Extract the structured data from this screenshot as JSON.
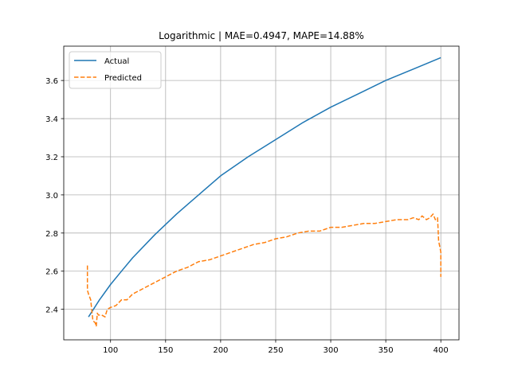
{
  "chart_data": {
    "type": "line",
    "title": "Logarithmic | MAE=0.4947, MAPE=14.88%",
    "xlabel": "",
    "ylabel": "",
    "xlim": [
      57.5,
      416.5
    ],
    "ylim": [
      2.24,
      3.78
    ],
    "x_ticks": [
      100,
      150,
      200,
      250,
      300,
      350,
      400
    ],
    "y_ticks": [
      2.4,
      2.6,
      2.8,
      3.0,
      3.2,
      3.4,
      3.6
    ],
    "y_tick_labels": [
      "2.4",
      "2.6",
      "2.8",
      "3.0",
      "3.2",
      "3.4",
      "3.6"
    ],
    "grid": true,
    "legend_position": "top-left",
    "series": [
      {
        "name": "Actual",
        "color": "#1f77b4",
        "dash": "solid",
        "points": [
          [
            80,
            2.36
          ],
          [
            90,
            2.45
          ],
          [
            100,
            2.53
          ],
          [
            110,
            2.6
          ],
          [
            120,
            2.67
          ],
          [
            140,
            2.79
          ],
          [
            160,
            2.9
          ],
          [
            180,
            3.0
          ],
          [
            200,
            3.1
          ],
          [
            225,
            3.2
          ],
          [
            250,
            3.29
          ],
          [
            275,
            3.38
          ],
          [
            300,
            3.46
          ],
          [
            325,
            3.53
          ],
          [
            350,
            3.6
          ],
          [
            375,
            3.66
          ],
          [
            400,
            3.72
          ]
        ]
      },
      {
        "name": "Predicted",
        "color": "#ff7f0e",
        "dash": "dashed",
        "points": [
          [
            79,
            2.63
          ],
          [
            79,
            2.5
          ],
          [
            80,
            2.48
          ],
          [
            82,
            2.45
          ],
          [
            84,
            2.34
          ],
          [
            86,
            2.33
          ],
          [
            87,
            2.31
          ],
          [
            88,
            2.38
          ],
          [
            89,
            2.37
          ],
          [
            92,
            2.37
          ],
          [
            95,
            2.36
          ],
          [
            97,
            2.4
          ],
          [
            100,
            2.41
          ],
          [
            105,
            2.42
          ],
          [
            110,
            2.45
          ],
          [
            115,
            2.45
          ],
          [
            120,
            2.48
          ],
          [
            130,
            2.51
          ],
          [
            140,
            2.54
          ],
          [
            150,
            2.57
          ],
          [
            160,
            2.6
          ],
          [
            170,
            2.62
          ],
          [
            180,
            2.65
          ],
          [
            190,
            2.66
          ],
          [
            200,
            2.68
          ],
          [
            210,
            2.7
          ],
          [
            220,
            2.72
          ],
          [
            230,
            2.74
          ],
          [
            240,
            2.75
          ],
          [
            250,
            2.77
          ],
          [
            260,
            2.78
          ],
          [
            270,
            2.8
          ],
          [
            280,
            2.81
          ],
          [
            290,
            2.81
          ],
          [
            300,
            2.83
          ],
          [
            310,
            2.83
          ],
          [
            320,
            2.84
          ],
          [
            330,
            2.85
          ],
          [
            340,
            2.85
          ],
          [
            350,
            2.86
          ],
          [
            360,
            2.87
          ],
          [
            370,
            2.87
          ],
          [
            375,
            2.88
          ],
          [
            380,
            2.87
          ],
          [
            383,
            2.89
          ],
          [
            387,
            2.87
          ],
          [
            390,
            2.88
          ],
          [
            393,
            2.9
          ],
          [
            395,
            2.87
          ],
          [
            397,
            2.88
          ],
          [
            398,
            2.76
          ],
          [
            399,
            2.73
          ],
          [
            400,
            2.7
          ],
          [
            400,
            2.57
          ]
        ]
      }
    ]
  }
}
